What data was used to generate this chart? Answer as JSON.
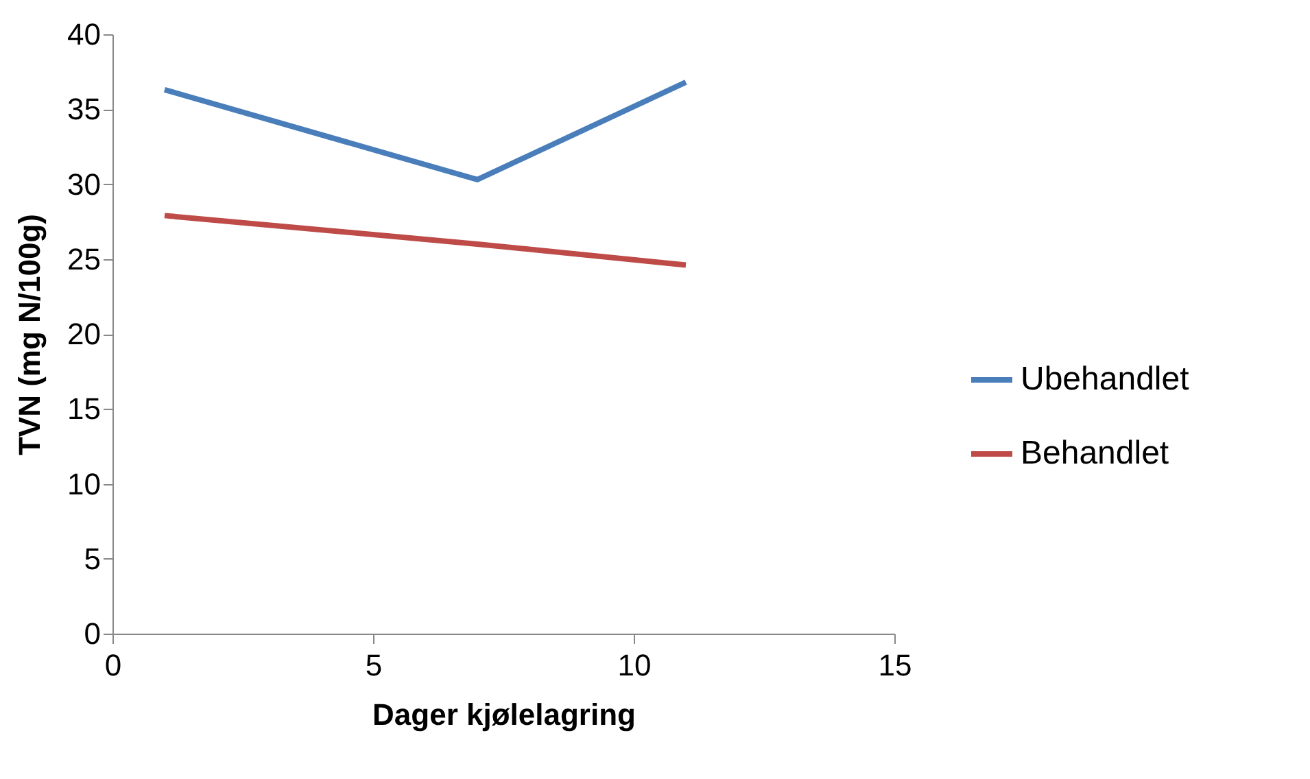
{
  "chart_data": {
    "type": "line",
    "xlabel": "Dager kjølelagring",
    "ylabel": "TVN (mg N/100g)",
    "x": [
      1,
      7,
      11
    ],
    "series": [
      {
        "name": "Ubehandlet",
        "color": "#4a7ebb",
        "values": [
          36.3,
          30.3,
          36.8
        ]
      },
      {
        "name": "Behandlet",
        "color": "#be4b48",
        "values": [
          27.9,
          26.0,
          24.6
        ]
      }
    ],
    "xlim": [
      0,
      15
    ],
    "xticks": [
      0,
      5,
      10,
      15
    ],
    "ylim": [
      0,
      40
    ],
    "yticks": [
      0,
      5,
      10,
      15,
      20,
      25,
      30,
      35,
      40
    ],
    "grid": false,
    "legend": "right",
    "line_style": "solid"
  }
}
